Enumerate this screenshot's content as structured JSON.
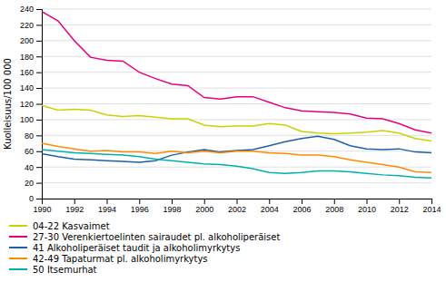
{
  "chart_data": {
    "type": "line",
    "y_label": "Kuolleisuus/100 000",
    "x": [
      1990,
      1991,
      1992,
      1993,
      1994,
      1995,
      1996,
      1997,
      1998,
      1999,
      2000,
      2001,
      2002,
      2003,
      2004,
      2005,
      2006,
      2007,
      2008,
      2009,
      2010,
      2011,
      2012,
      2013,
      2014
    ],
    "series": [
      {
        "name": "04-22 Kasvaimet",
        "color": "#c8d400",
        "values": [
          118,
          112,
          113,
          112,
          106,
          104,
          105,
          103,
          101,
          101,
          93,
          91,
          92,
          92,
          95,
          93,
          85,
          83,
          82,
          83,
          84,
          86,
          83,
          76,
          73
        ]
      },
      {
        "name": "27-30 Verenkiertoelinten sairaudet pl. alkoholiperäiset",
        "color": "#e6007e",
        "values": [
          237,
          225,
          200,
          179,
          175,
          174,
          160,
          152,
          145,
          143,
          128,
          126,
          129,
          129,
          122,
          115,
          111,
          110,
          109,
          107,
          102,
          101,
          95,
          87,
          83
        ]
      },
      {
        "name": "41 Alkoholiperäiset taudit ja alkoholimyrkytys",
        "color": "#1f5fa6",
        "values": [
          57,
          53,
          50,
          49,
          48,
          47,
          46,
          48,
          55,
          59,
          62,
          59,
          61,
          62,
          67,
          72,
          76,
          79,
          75,
          67,
          63,
          62,
          63,
          59,
          58
        ]
      },
      {
        "name": "42-49 Tapaturmat pl. alkoholimyrkytys",
        "color": "#ff8c00",
        "values": [
          70,
          66,
          63,
          60,
          61,
          59,
          59,
          57,
          60,
          58,
          60,
          58,
          60,
          60,
          58,
          57,
          55,
          55,
          53,
          49,
          46,
          43,
          40,
          34,
          33
        ]
      },
      {
        "name": "50 Itsemurhat",
        "color": "#00b0b0",
        "values": [
          62,
          60,
          58,
          57,
          56,
          55,
          53,
          50,
          48,
          46,
          44,
          43,
          41,
          38,
          33,
          32,
          33,
          35,
          35,
          34,
          32,
          30,
          29,
          27,
          26
        ]
      }
    ],
    "xlim": [
      1990,
      2014
    ],
    "xticks": [
      1990,
      1992,
      1994,
      1996,
      1998,
      2000,
      2002,
      2004,
      2006,
      2008,
      2010,
      2012,
      2014
    ],
    "ylim": [
      0,
      240
    ],
    "yticks": [
      0,
      20,
      40,
      60,
      80,
      100,
      120,
      140,
      160,
      180,
      200,
      220,
      240
    ],
    "grid": true,
    "legend": "bottom"
  }
}
